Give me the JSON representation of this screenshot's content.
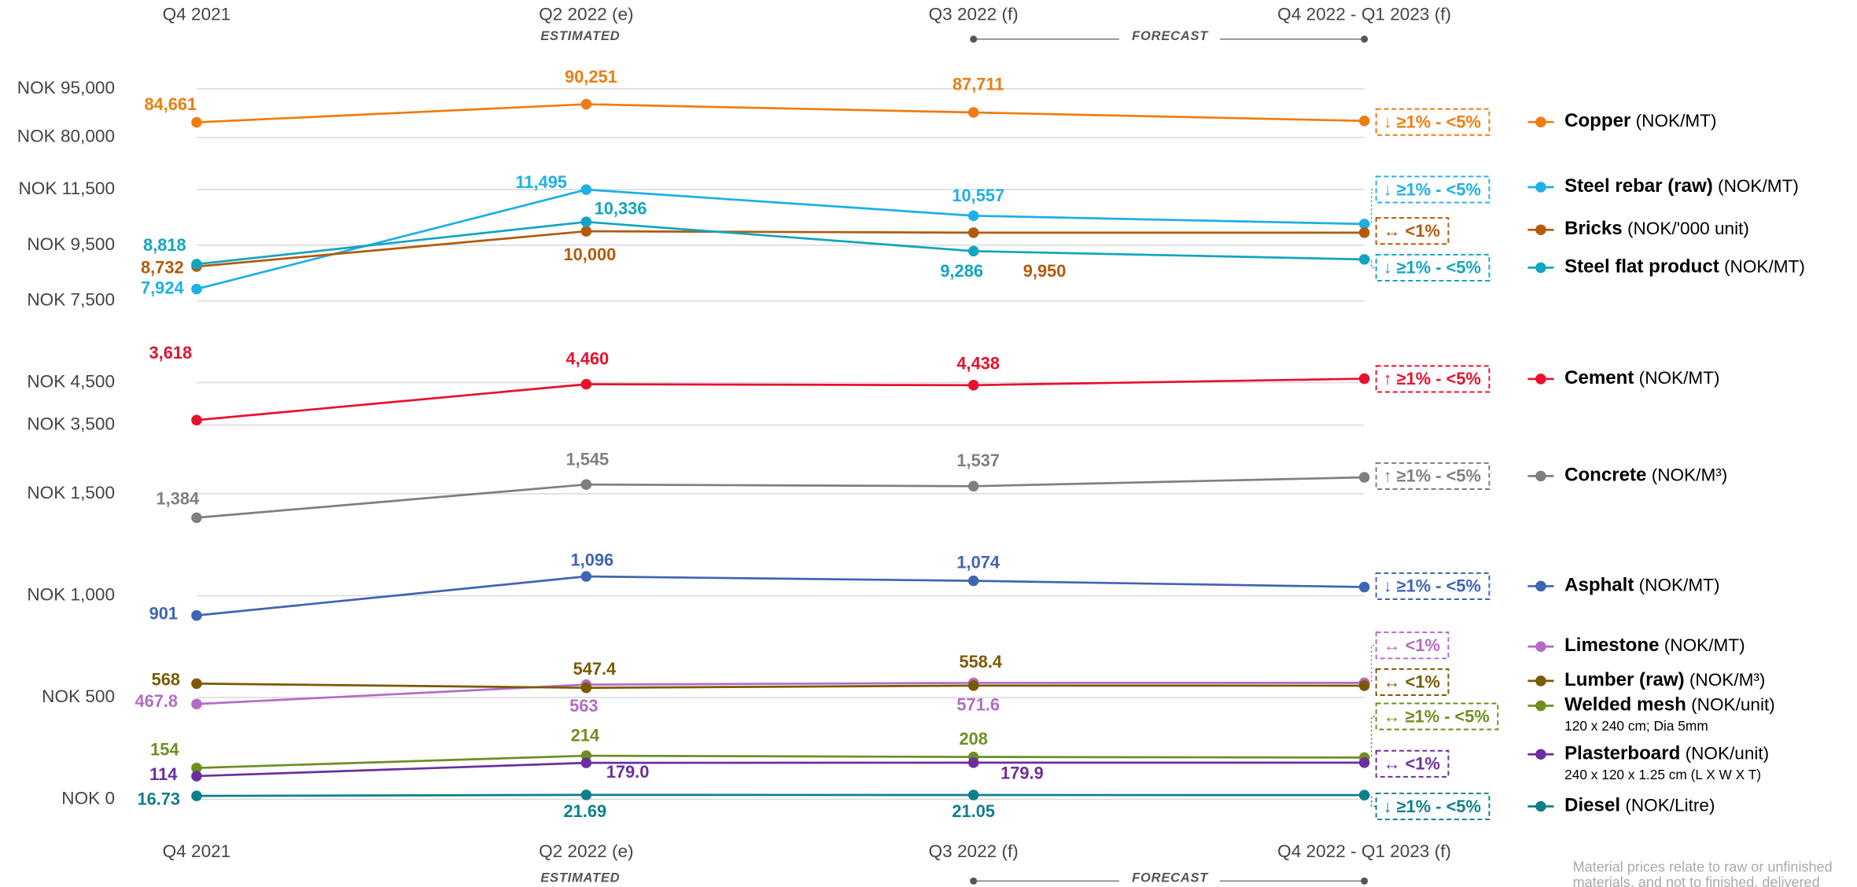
{
  "chart_data": {
    "type": "line",
    "categories": [
      "Q4 2021",
      "Q2 2022 (e)",
      "Q3 2022 (f)",
      "Q4 2022 - Q1 2023 (f)"
    ],
    "annotations": {
      "estimated": "ESTIMATED",
      "forecast": "FORECAST"
    },
    "note": [
      "Material prices relate to raw or unfinished",
      "materials, and not to finished, delivered"
    ],
    "grid": true,
    "panels": [
      {
        "ylim": [
          77000,
          100000
        ],
        "yticks": [
          {
            "value": 80000,
            "label": "NOK 80,000"
          },
          {
            "value": 95000,
            "label": "NOK 95,000"
          }
        ],
        "series": [
          {
            "name": "Copper",
            "unit": "(NOK/MT)",
            "color": "#ee7d11",
            "values": [
              84661,
              90251,
              87711,
              85100
            ],
            "value_labels": [
              "84,661",
              "90,251",
              "87,711",
              null
            ],
            "change": "↓ ≥1% - <5%"
          }
        ]
      },
      {
        "ylim": [
          7000,
          12000
        ],
        "yticks": [
          {
            "value": 7500,
            "label": "NOK 7,500"
          },
          {
            "value": 9500,
            "label": "NOK 9,500"
          },
          {
            "value": 11500,
            "label": "NOK 11,500"
          }
        ],
        "series": [
          {
            "name": "Steel rebar (raw)",
            "unit": "(NOK/MT)",
            "color": "#1cb0e6",
            "values": [
              7924,
              11495,
              10557,
              10260
            ],
            "value_labels": [
              "7,924",
              "11,495",
              "10,557",
              null
            ],
            "change": "↓ ≥1% - <5%"
          },
          {
            "name": "Bricks",
            "unit": "(NOK/'000 unit)",
            "color": "#b35a0c",
            "values": [
              8732,
              10000,
              9950,
              9950
            ],
            "value_labels": [
              "8,732",
              "10,000",
              "9,950",
              null
            ],
            "change": "↔ <1%"
          },
          {
            "name": "Steel flat product",
            "unit": "(NOK/MT)",
            "color": "#12a5bf",
            "values": [
              8818,
              10336,
              9286,
              8990
            ],
            "value_labels": [
              "8,818",
              "10,336",
              "9,286",
              null
            ],
            "change": "↓ ≥1% - <5%"
          }
        ]
      },
      {
        "ylim": [
          3300,
          4800
        ],
        "yticks": [
          {
            "value": 3500,
            "label": "NOK 3,500"
          },
          {
            "value": 4500,
            "label": "NOK 4,500"
          }
        ],
        "series": [
          {
            "name": "Cement",
            "unit": "(NOK/MT)",
            "color": "#e8112d",
            "values": [
              3618,
              4460,
              4438,
              4590
            ],
            "value_labels": [
              "3,618",
              "4,460",
              "4,438",
              null
            ],
            "change": "↑ ≥1% - <5%"
          }
        ]
      },
      {
        "ylim": [
          1350,
          1600
        ],
        "yticks": [
          {
            "value": 1500,
            "label": "NOK 1,500"
          }
        ],
        "series": [
          {
            "name": "Concrete",
            "unit": "(NOK/M³)",
            "color": "#7f7f7f",
            "values": [
              1384,
              1545,
              1537,
              1580
            ],
            "value_labels": [
              "1,384",
              "1,545",
              "1,537",
              null
            ],
            "change": "↑ ≥1% - <5%"
          }
        ]
      },
      {
        "ylim": [
          880,
          1120
        ],
        "yticks": [
          {
            "value": 1000,
            "label": "NOK 1,000"
          }
        ],
        "series": [
          {
            "name": "Asphalt",
            "unit": "(NOK/MT)",
            "color": "#4064b4",
            "values": [
              901,
              1096,
              1074,
              1043
            ],
            "value_labels": [
              "901",
              "1,096",
              "1,074",
              null
            ],
            "change": "↓ ≥1% - <5%"
          }
        ]
      },
      {
        "ylim": [
          0,
          600
        ],
        "yticks": [
          {
            "value": 0,
            "label": "NOK 0"
          },
          {
            "value": 500,
            "label": "NOK 500"
          }
        ],
        "series": [
          {
            "name": "Limestone",
            "unit": "(NOK/MT)",
            "color": "#b36cc4",
            "values": [
              467.8,
              563,
              571.6,
              572
            ],
            "change": "↔ <1%"
          },
          {
            "name": "Lumber (raw)",
            "unit": "(NOK/M³)",
            "color": "#7a5a00",
            "values": [
              568,
              547.4,
              558.4,
              558
            ],
            "change": "↔ <1%"
          },
          {
            "name": "Welded mesh",
            "unit": "(NOK/unit)",
            "detail": "120 x 240 cm; Dia 5mm",
            "color": "#6f8e22",
            "values": [
              154,
              214,
              208,
              205
            ],
            "change": "↔ ≥1% - <5%"
          },
          {
            "name": "Plasterboard",
            "unit": "(NOK/unit)",
            "detail": "240 x 120 x 1.25 cm (L X W X T)",
            "color": "#6a2f9e",
            "values": [
              114,
              179,
              179.9,
              180
            ],
            "value_labels": [
              "114",
              "179.0",
              "179.9",
              null
            ],
            "change": "↔ <1%"
          },
          {
            "name": "Diesel",
            "unit": "(NOK/Litre)",
            "color": "#0f7f8a",
            "values": [
              16.73,
              21.69,
              21.05,
              20.5
            ],
            "change": "↓ ≥1% - <5%"
          }
        ]
      }
    ]
  }
}
